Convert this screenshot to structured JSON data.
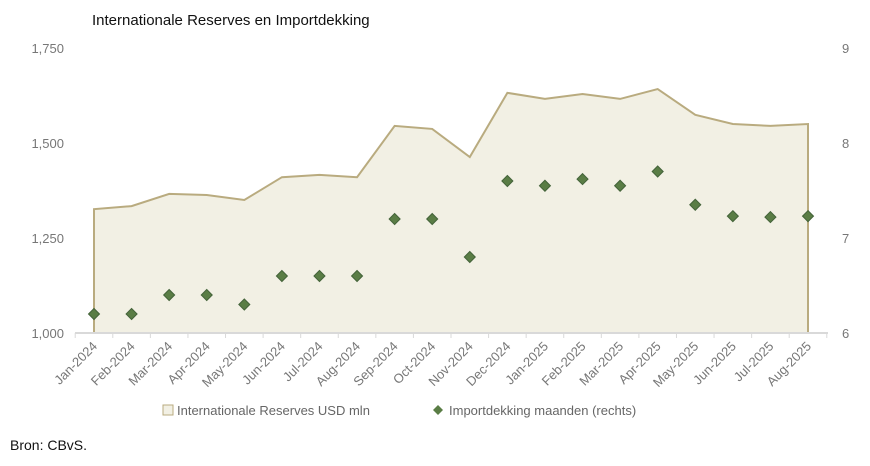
{
  "chart_data": {
    "type": "area+scatter",
    "title": "Internationale Reserves en Importdekking",
    "source": "Bron: CBvS.",
    "categories": [
      "Jan-2024",
      "Feb-2024",
      "Mar-2024",
      "Apr-2024",
      "May-2024",
      "Jun-2024",
      "Jul-2024",
      "Aug-2024",
      "Sep-2024",
      "Oct-2024",
      "Nov-2024",
      "Dec-2024",
      "Jan-2025",
      "Feb-2025",
      "Mar-2025",
      "Apr-2025",
      "May-2025",
      "Jun-2025",
      "Jul-2025",
      "Aug-2025"
    ],
    "series": [
      {
        "name": "Internationale Reserves USD mln",
        "type": "area",
        "axis": "left",
        "color": "#b9ab7f",
        "fill": "#f2f0e4",
        "values": [
          1326,
          1334,
          1366,
          1363,
          1350,
          1410,
          1416,
          1410,
          1545,
          1537,
          1463,
          1632,
          1616,
          1629,
          1616,
          1642,
          1574,
          1550,
          1545,
          1550
        ]
      },
      {
        "name": "Importdekking maanden (rechts)",
        "type": "scatter",
        "axis": "right",
        "color": "#5a7d45",
        "marker": "diamond",
        "values": [
          6.2,
          6.2,
          6.4,
          6.4,
          6.3,
          6.6,
          6.6,
          6.6,
          7.2,
          7.2,
          6.8,
          7.6,
          7.55,
          7.62,
          7.55,
          7.7,
          7.35,
          7.23,
          7.22,
          7.23
        ]
      }
    ],
    "y_left": {
      "min": 1000,
      "max": 1750,
      "ticks": [
        1000,
        1250,
        1500,
        1750
      ],
      "tick_labels": [
        "1,000",
        "1,250",
        "1,500",
        "1,750"
      ]
    },
    "y_right": {
      "min": 6,
      "max": 9,
      "ticks": [
        6,
        7,
        8,
        9
      ],
      "tick_labels": [
        "6",
        "7",
        "8",
        "9"
      ]
    },
    "grid": false,
    "legend_position": "bottom"
  }
}
